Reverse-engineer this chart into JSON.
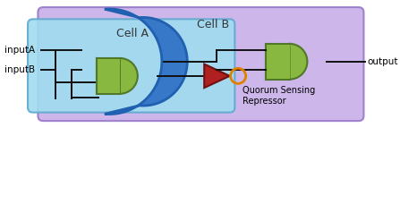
{
  "fig_width": 4.47,
  "fig_height": 2.38,
  "dpi": 100,
  "bg_color": "#ffffff",
  "cell_b_color": "#c8b0e8",
  "cell_b_edge": "#9878c8",
  "cell_b_label": "Cell B",
  "cell_a_color": "#a0dcf0",
  "cell_a_edge": "#60a8d0",
  "cell_a_label": "Cell A",
  "gate_green": "#88b840",
  "gate_green_edge": "#507828",
  "moon_color": "#3878c8",
  "moon_edge": "#2060b0",
  "wire_color": "#111111",
  "inputA_label": "inputA",
  "inputB_label": "inputB",
  "output_label": "output",
  "qsr_label": "Quorum Sensing\nRepressor",
  "triangle_color": "#b02020",
  "triangle_edge": "#701010",
  "circle_edge": "#e08000",
  "lw": 1.4
}
